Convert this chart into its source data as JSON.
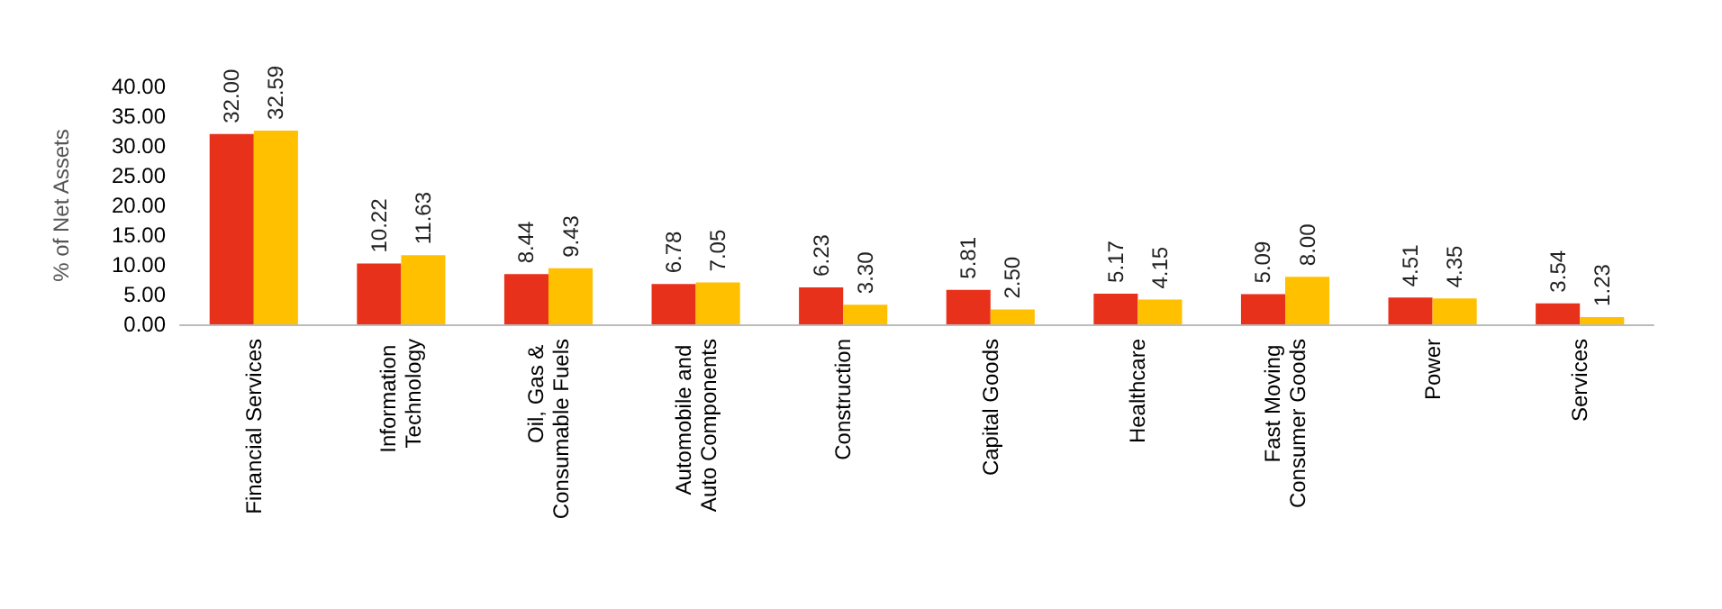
{
  "chart_data": {
    "type": "bar",
    "ylabel": "% of Net Assets",
    "categories": [
      "Financial Services",
      "Information Technology",
      "Oil, Gas & Consumable Fuels",
      "Automobile and Auto Components",
      "Construction",
      "Capital Goods",
      "Healthcare",
      "Fast Moving Consumer Goods",
      "Power",
      "Services"
    ],
    "series": [
      {
        "color": "#e8311a",
        "values": [
          32.0,
          10.22,
          8.44,
          6.78,
          6.23,
          5.81,
          5.17,
          5.09,
          4.51,
          3.54
        ],
        "value_labels": [
          "32.00",
          "10.22",
          "8.44",
          "6.78",
          "6.23",
          "5.81",
          "5.17",
          "5.09",
          "4.51",
          "3.54"
        ]
      },
      {
        "color": "#ffc000",
        "values": [
          32.59,
          11.63,
          9.43,
          7.05,
          3.3,
          2.5,
          4.15,
          8.0,
          4.35,
          1.23
        ],
        "value_labels": [
          "32.59",
          "11.63",
          "9.43",
          "7.05",
          "3.30",
          "2.50",
          "4.15",
          "8.00",
          "4.35",
          "1.23"
        ]
      }
    ],
    "ylim": [
      0,
      40
    ],
    "yticks": [
      {
        "value": 0,
        "label": "0.00"
      },
      {
        "value": 5,
        "label": "5.00"
      },
      {
        "value": 10,
        "label": "10.00"
      },
      {
        "value": 15,
        "label": "15.00"
      },
      {
        "value": 20,
        "label": "20.00"
      },
      {
        "value": 25,
        "label": "25.00"
      },
      {
        "value": 30,
        "label": "30.00"
      },
      {
        "value": 35,
        "label": "35.00"
      },
      {
        "value": 40,
        "label": "40.00"
      }
    ],
    "grid": false
  }
}
